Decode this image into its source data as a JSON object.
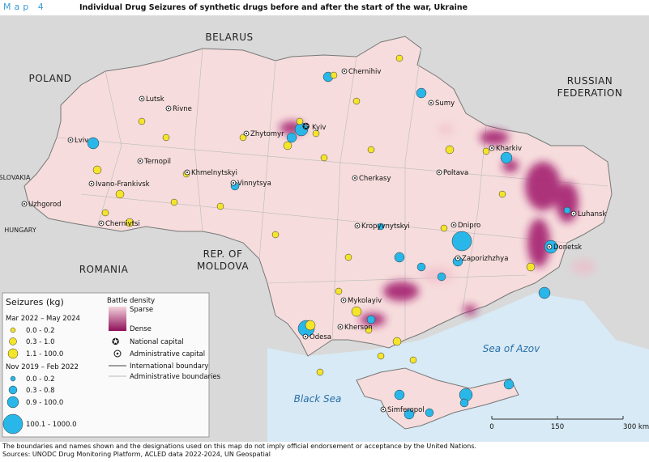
{
  "header": {
    "label": "Map 4",
    "title": "Individual Drug Seizures of synthetic drugs before and after the start of the war, Ukraine"
  },
  "map": {
    "countries": [
      [
        "BELARUS"
      ],
      [
        "POLAND"
      ],
      [
        "RUSSIAN",
        "FEDERATION"
      ],
      [
        "SLOVAKIA"
      ],
      [
        "HUNGARY"
      ],
      [
        "ROMANIA"
      ],
      [
        "REP. OF",
        "MOLDOVA"
      ]
    ],
    "seas": [
      "Black Sea",
      "Sea of Azov"
    ],
    "cities": [
      "Chernihiv",
      "Sumy",
      "Kharkiv",
      "Luhansk",
      "Donetsk",
      "Zaporizhzhya",
      "Dnipro",
      "Poltava",
      "Cherkasy",
      "Kyiv",
      "Zhytomyr",
      "Rivne",
      "Lutsk",
      "Lviv",
      "Ternopil",
      "Khmelnytskyi",
      "Vinnytsya",
      "Ivano-Frankivsk",
      "Uzhgorod",
      "Chernivtsi",
      "Kropyvnytskyi",
      "Mykolayiv",
      "Kherson",
      "Odesa",
      "Simferopol"
    ]
  },
  "legend": {
    "title": "Seizures (kg)",
    "periods": [
      {
        "name": "Mar 2022 – May 2024",
        "classes": [
          "0.0 - 0.2",
          "0.3 - 1.0",
          "1.1 - 100.0"
        ]
      },
      {
        "name": "Nov 2019 – Feb 2022",
        "classes": [
          "0.0 - 0.2",
          "0.3 - 0.8",
          "0.9 - 100.0",
          "100.1 - 1000.0"
        ]
      }
    ],
    "density": {
      "title": "Battle density",
      "sparse": "Sparse",
      "dense": "Dense"
    },
    "symbols": [
      "National capital",
      "Administrative capital",
      "International boundary",
      "Administrative boundaries"
    ]
  },
  "scale_bar": {
    "labels": [
      "0",
      "150",
      "300 km"
    ]
  },
  "footnotes": [
    "The boundaries and names shown and the designations used on this map do not imply official endorsement or acceptance by the United Nations.",
    "Sources: UNODC Drug Monitoring Platform, ACLED data 2022-2024, UN Geospatial"
  ]
}
